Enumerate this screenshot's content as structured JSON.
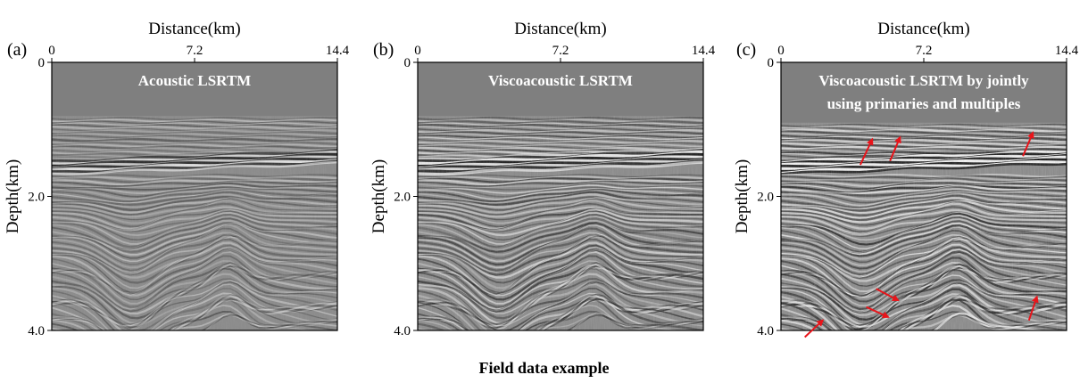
{
  "figure": {
    "caption": "Field data example",
    "panels": [
      {
        "letter": "(a)",
        "x_title": "Distance(km)",
        "y_title": "Depth(km)",
        "x_ticks": [
          "0",
          "7.2",
          "14.4"
        ],
        "y_ticks": [
          "0",
          "2.0",
          "4.0"
        ],
        "caption_lines": [
          "Acoustic LSRTM"
        ],
        "arrows": []
      },
      {
        "letter": "(b)",
        "x_title": "Distance(km)",
        "y_title": "Depth(km)",
        "x_ticks": [
          "0",
          "7.2",
          "14.4"
        ],
        "y_ticks": [
          "0",
          "2.0",
          "4.0"
        ],
        "caption_lines": [
          "Viscoacoustic LSRTM"
        ],
        "arrows": []
      },
      {
        "letter": "(c)",
        "x_title": "Distance(km)",
        "y_title": "Depth(km)",
        "x_ticks": [
          "0",
          "7.2",
          "14.4"
        ],
        "y_ticks": [
          "0",
          "2.0",
          "4.0"
        ],
        "caption_lines": [
          "Viscoacoustic LSRTM by jointly",
          "using primaries and multiples"
        ],
        "arrows": [
          {
            "from": [
              4.0,
              1.53
            ],
            "to": [
              4.6,
              1.15
            ]
          },
          {
            "from": [
              5.5,
              1.47
            ],
            "to": [
              6.0,
              1.12
            ]
          },
          {
            "from": [
              12.2,
              1.4
            ],
            "to": [
              12.7,
              1.05
            ]
          },
          {
            "from": [
              4.8,
              3.38
            ],
            "to": [
              5.9,
              3.55
            ]
          },
          {
            "from": [
              4.3,
              3.65
            ],
            "to": [
              5.4,
              3.8
            ]
          },
          {
            "from": [
              12.5,
              3.85
            ],
            "to": [
              12.9,
              3.5
            ]
          },
          {
            "from": [
              1.2,
              4.1
            ],
            "to": [
              2.1,
              3.85
            ]
          }
        ]
      }
    ],
    "colors": {
      "water_column": "#7f7f7f",
      "caption_text": "#ffffff",
      "arrow": "#e8141a"
    }
  }
}
